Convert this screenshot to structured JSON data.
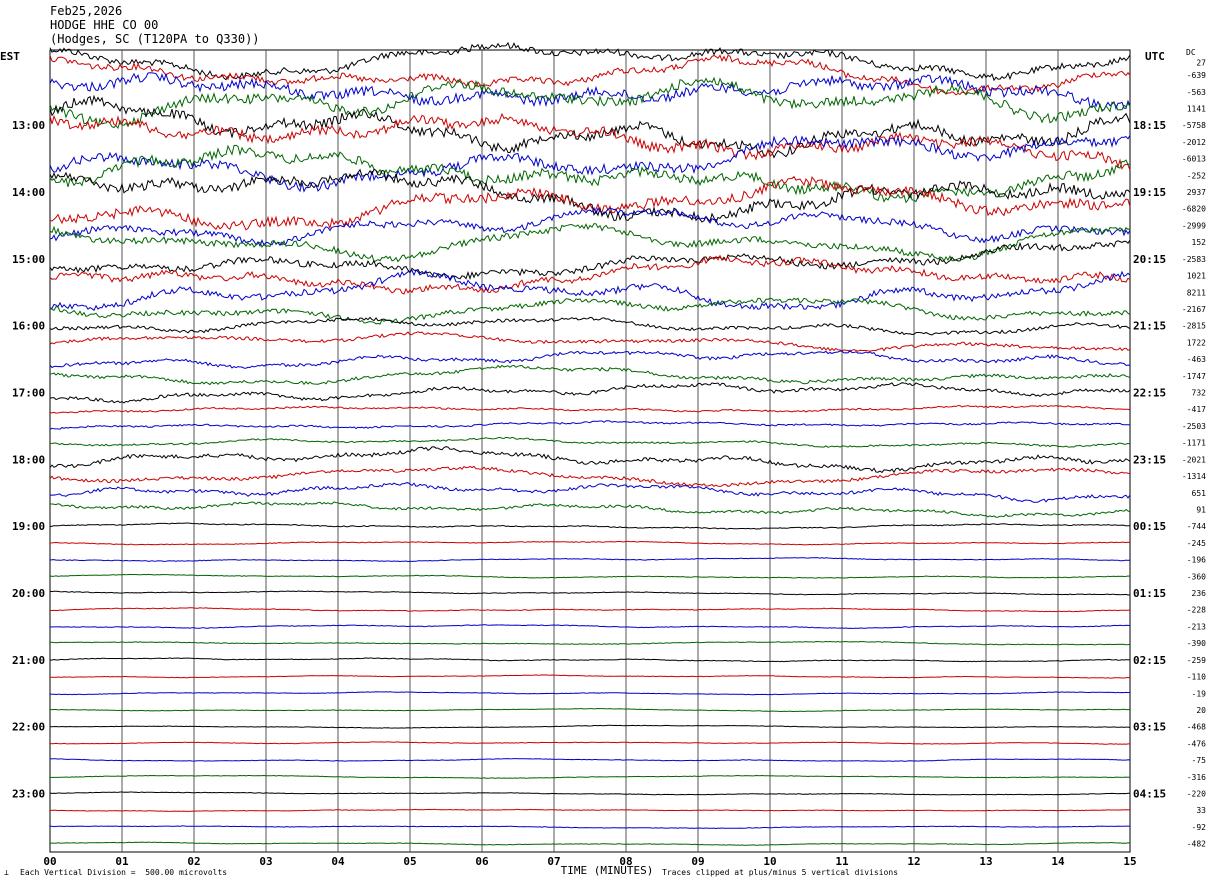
{
  "header": {
    "date": "Feb25,2026",
    "station": "HODGE HHE CO 00",
    "location": "(Hodges, SC (T120PA to Q330))"
  },
  "footer": {
    "scale_note": "Each Vertical Division =  500.00 microvolts",
    "clip_note": "Traces clipped at plus/minus 5 vertical divisions"
  },
  "chart_data": {
    "type": "line",
    "title": "",
    "xlabel": "TIME (MINUTES)",
    "ylabel_left": "EST",
    "ylabel_right": "UTC",
    "dc_label": "DC",
    "x_range": [
      0,
      15
    ],
    "x_ticks": [
      "00",
      "01",
      "02",
      "03",
      "04",
      "05",
      "06",
      "07",
      "08",
      "09",
      "10",
      "11",
      "12",
      "13",
      "14",
      "15"
    ],
    "rows_per_hour": 4,
    "trace_colors": [
      "#000000",
      "#cc0000",
      "#0000cc",
      "#006600"
    ],
    "left_hour_labels": [
      "13:00",
      "14:00",
      "15:00",
      "16:00",
      "17:00",
      "18:00",
      "19:00",
      "20:00",
      "21:00",
      "22:00",
      "23:00"
    ],
    "right_hour_labels": [
      "18:15",
      "19:15",
      "20:15",
      "21:15",
      "22:15",
      "23:15",
      "00:15",
      "01:15",
      "02:15",
      "03:15",
      "04:15"
    ],
    "dc_offsets": [
      "27",
      "-639",
      "-563",
      "1141",
      "-5758",
      "-2012",
      "-6013",
      "-252",
      "2937",
      "-6820",
      "-2999",
      "152",
      "-2583",
      "1021",
      "8211",
      "-2167",
      "-2815",
      "1722",
      "-463",
      "-1747",
      "732",
      "-417",
      "-2503",
      "-1171",
      "-2021",
      "-1314",
      "651",
      "91",
      "-744",
      "-245",
      "-196",
      "-360",
      "236",
      "-228",
      "-213",
      "-390",
      "-259",
      "-110",
      "-19",
      "20",
      "-468",
      "-476",
      "-75",
      "-316",
      "-220",
      "33",
      "-92",
      "-482"
    ],
    "row_activity": [
      2,
      2,
      3,
      3,
      3,
      3,
      3,
      3,
      3,
      3,
      2,
      2,
      2,
      2,
      2,
      1.5,
      1,
      1,
      1,
      1,
      1,
      0.5,
      0.5,
      0.5,
      1.2,
      1,
      1,
      0.8,
      0.3,
      0.2,
      0.2,
      0.2,
      0.2,
      0.2,
      0.2,
      0.2,
      0.2,
      0.15,
      0.15,
      0.15,
      0.15,
      0.15,
      0.15,
      0.15,
      0.15,
      0.15,
      0.15,
      0.15
    ]
  }
}
